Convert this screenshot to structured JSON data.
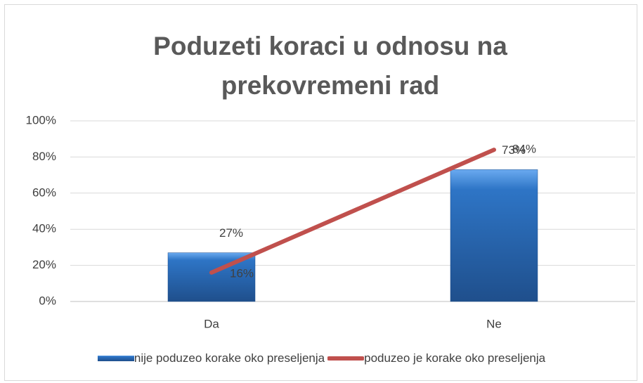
{
  "chart_data": {
    "type": "bar",
    "title": "Poduzeti koraci u odnosu na prekovremeni rad",
    "categories": [
      "Da",
      "Ne"
    ],
    "series": [
      {
        "name": "nije poduzeo korake oko preseljenja",
        "type": "bar",
        "color": "#2e75c6",
        "values": [
          27,
          73
        ],
        "value_labels": [
          "27%",
          "73%"
        ]
      },
      {
        "name": "poduzeo je korake oko preseljenja",
        "type": "line",
        "color": "#c0504d",
        "values": [
          16,
          84
        ],
        "value_labels": [
          "16%",
          "84%"
        ]
      }
    ],
    "ylim": [
      0,
      100
    ],
    "yticks": [
      {
        "value": 0,
        "label": "0%"
      },
      {
        "value": 20,
        "label": "20%"
      },
      {
        "value": 40,
        "label": "40%"
      },
      {
        "value": 60,
        "label": "60%"
      },
      {
        "value": 80,
        "label": "80%"
      },
      {
        "value": 100,
        "label": "100%"
      }
    ],
    "grid": true,
    "legend": "bottom"
  }
}
